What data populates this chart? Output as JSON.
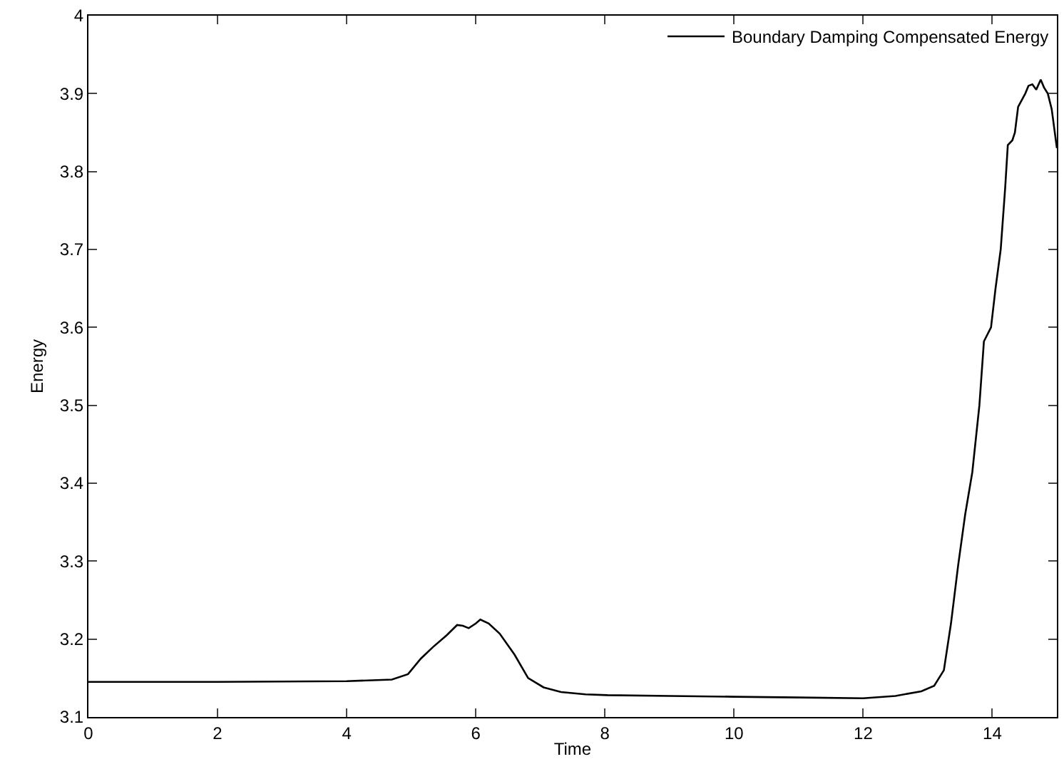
{
  "chart_data": {
    "type": "line",
    "xlabel": "Time",
    "ylabel": "Energy",
    "xlim": [
      0,
      15
    ],
    "ylim": [
      3.1,
      4
    ],
    "xticks": [
      0,
      2,
      4,
      6,
      8,
      10,
      12,
      14
    ],
    "yticks": [
      3.1,
      3.2,
      3.3,
      3.4,
      3.5,
      3.6,
      3.7,
      3.8,
      3.9,
      4
    ],
    "legend": "top right",
    "marker": "none",
    "line_style": "solid",
    "series": [
      {
        "name": "Boundary Damping Compensated Energy",
        "color": "#000000",
        "x": [
          0,
          2,
          4,
          4.7,
          4.95,
          5.15,
          5.34,
          5.55,
          5.71,
          5.8,
          5.89,
          6.0,
          6.07,
          6.2,
          6.37,
          6.6,
          6.81,
          7.05,
          7.32,
          7.7,
          8.04,
          9,
          10,
          11,
          12,
          12.5,
          12.9,
          13.1,
          13.25,
          13.36,
          13.47,
          13.58,
          13.69,
          13.8,
          13.87,
          13.98,
          14.05,
          14.13,
          14.2,
          14.24,
          14.31,
          14.35,
          14.4,
          14.51,
          14.56,
          14.62,
          14.68,
          14.75,
          14.8,
          14.86,
          14.92,
          15
        ],
        "values": [
          3.145,
          3.145,
          3.146,
          3.148,
          3.155,
          3.175,
          3.19,
          3.205,
          3.218,
          3.217,
          3.214,
          3.22,
          3.225,
          3.22,
          3.207,
          3.18,
          3.15,
          3.138,
          3.132,
          3.129,
          3.128,
          3.127,
          3.126,
          3.125,
          3.124,
          3.127,
          3.133,
          3.14,
          3.16,
          3.22,
          3.294,
          3.36,
          3.414,
          3.5,
          3.582,
          3.6,
          3.65,
          3.7,
          3.78,
          3.834,
          3.84,
          3.85,
          3.883,
          3.9,
          3.91,
          3.912,
          3.905,
          3.918,
          3.908,
          3.9,
          3.88,
          3.83
        ]
      }
    ]
  }
}
